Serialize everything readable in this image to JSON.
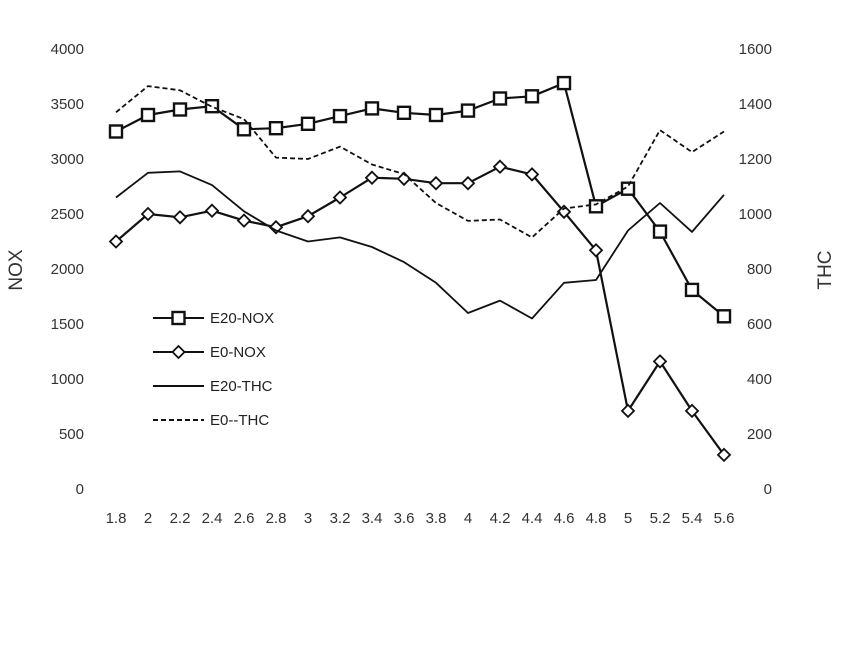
{
  "chart_data": {
    "type": "line",
    "categories": [
      "1.8",
      "2",
      "2.2",
      "2.4",
      "2.6",
      "2.8",
      "3",
      "3.2",
      "3.4",
      "3.6",
      "3.8",
      "4",
      "4.2",
      "4.4",
      "4.6",
      "4.8",
      "5",
      "5.2",
      "5.4",
      "5.6"
    ],
    "y_left": {
      "label": "NOX",
      "min": 0,
      "max": 4000,
      "ticks": [
        0,
        500,
        1000,
        1500,
        2000,
        2500,
        3000,
        3500,
        4000
      ]
    },
    "y_right": {
      "label": "THC",
      "min": 0,
      "max": 1600,
      "ticks": [
        0,
        200,
        400,
        600,
        800,
        1000,
        1200,
        1400,
        1600
      ]
    },
    "grid": false,
    "legend_position": "left-middle",
    "series": [
      {
        "name": "E20-NOX",
        "axis": "left",
        "style": "solid",
        "marker": "square",
        "values": [
          3250,
          3400,
          3450,
          3480,
          3270,
          3280,
          3320,
          3390,
          3460,
          3420,
          3400,
          3440,
          3550,
          3570,
          3690,
          2570,
          2730,
          2340,
          1810,
          1570
        ]
      },
      {
        "name": "E0-NOX",
        "axis": "left",
        "style": "solid",
        "marker": "diamond",
        "values": [
          2250,
          2500,
          2470,
          2530,
          2440,
          2380,
          2480,
          2650,
          2830,
          2820,
          2780,
          2780,
          2930,
          2860,
          2520,
          2170,
          710,
          1160,
          710,
          310
        ]
      },
      {
        "name": "E20-THC",
        "axis": "right",
        "style": "solid",
        "marker": "none",
        "values": [
          1060,
          1150,
          1155,
          1105,
          1010,
          940,
          900,
          915,
          880,
          825,
          750,
          640,
          685,
          620,
          750,
          760,
          940,
          1040,
          935,
          1070
        ]
      },
      {
        "name": "E0--THC",
        "axis": "right",
        "style": "dashed",
        "marker": "none",
        "values": [
          1370,
          1465,
          1450,
          1390,
          1345,
          1205,
          1200,
          1245,
          1180,
          1145,
          1040,
          975,
          980,
          915,
          1020,
          1035,
          1100,
          1305,
          1225,
          1300
        ]
      }
    ]
  }
}
